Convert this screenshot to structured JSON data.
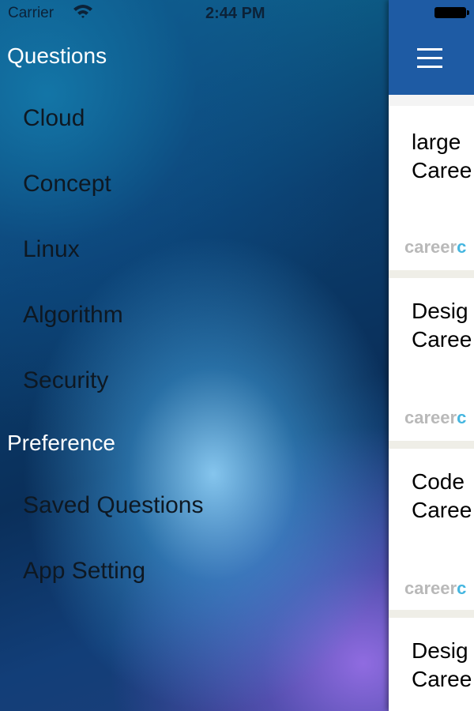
{
  "status_bar": {
    "carrier": "Carrier",
    "time": "2:44 PM"
  },
  "drawer": {
    "sections": [
      {
        "title": "Questions",
        "items": [
          "Cloud",
          "Concept",
          "Linux",
          "Algorithm",
          "Security"
        ]
      },
      {
        "title": "Preference",
        "items": [
          "Saved Questions",
          "App Setting"
        ]
      }
    ]
  },
  "navbar": {
    "menu_icon": "hamburger-menu-icon",
    "color": "#1e5ba4"
  },
  "cards": [
    {
      "line1": "large",
      "line2": "Caree",
      "tag": "career",
      "tag_accent": "c"
    },
    {
      "line1": "Desig",
      "line2": "Caree",
      "tag": "career",
      "tag_accent": "c"
    },
    {
      "line1": "Code",
      "line2": "Caree",
      "tag": "career",
      "tag_accent": "c"
    },
    {
      "line1": "Desig",
      "line2": "Caree"
    }
  ]
}
